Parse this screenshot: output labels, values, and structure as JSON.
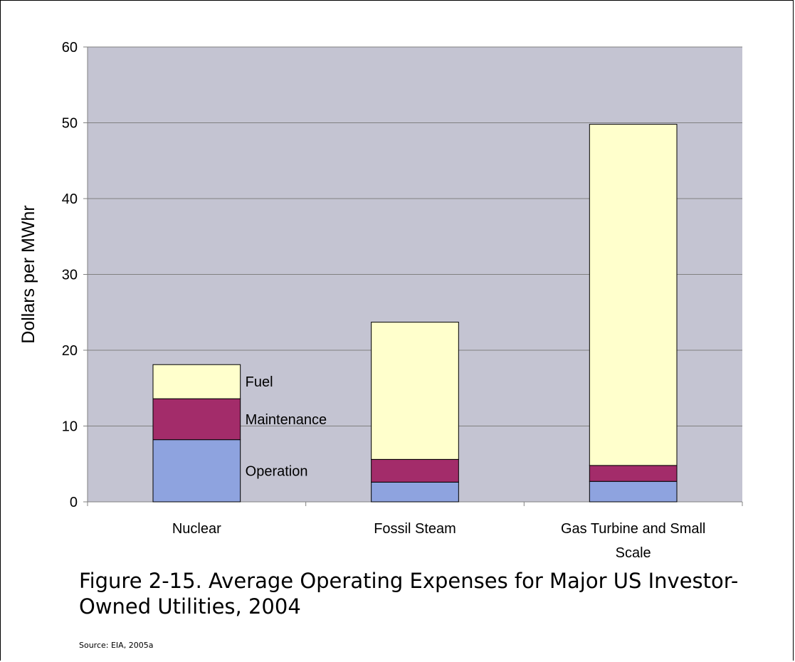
{
  "chart_data": {
    "type": "bar",
    "stacked": true,
    "categories": [
      "Nuclear",
      "Fossil Steam",
      "Gas Turbine and Small Scale"
    ],
    "series": [
      {
        "name": "Operation",
        "values": [
          8.2,
          2.6,
          2.7
        ],
        "color": "#8ea3df"
      },
      {
        "name": "Maintenance",
        "values": [
          5.4,
          3.0,
          2.1
        ],
        "color": "#a32c6a"
      },
      {
        "name": "Fuel",
        "values": [
          4.5,
          18.1,
          45.0
        ],
        "color": "#ffffcc"
      }
    ],
    "ylabel": "Dollars per MWhr",
    "ylim": [
      0,
      60
    ],
    "yticks": [
      0,
      10,
      20,
      30,
      40,
      50,
      60
    ],
    "grid": true,
    "plot_background": "#c4c4d2",
    "series_labels_placement": "right of first bar"
  },
  "caption": "Figure 2-15.  Average Operating Expenses for Major US Investor-Owned Utilities, 2004",
  "source": "Source:  EIA, 2005a"
}
